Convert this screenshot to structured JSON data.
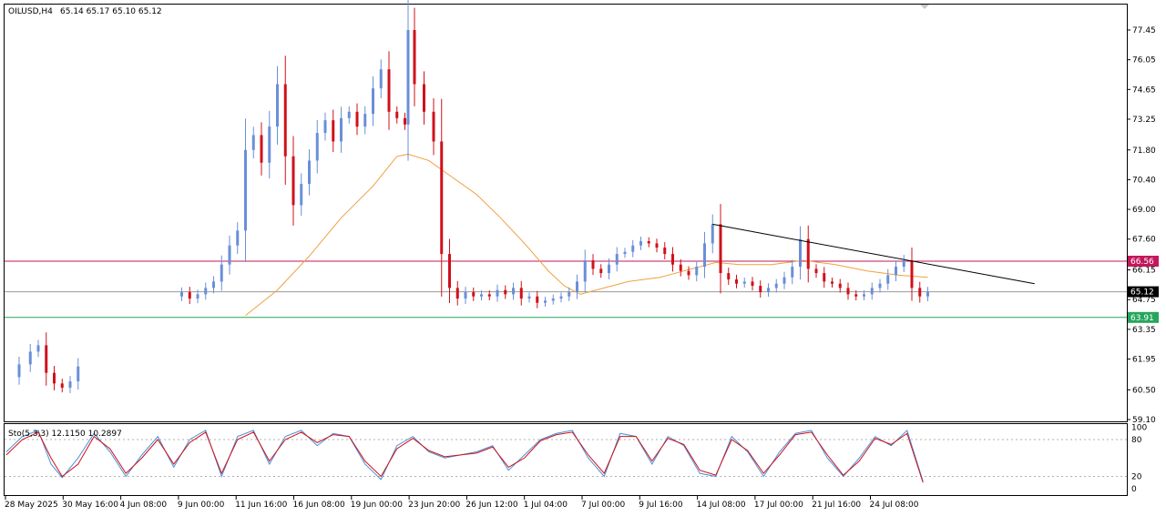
{
  "header": {
    "symbol_timeframe": "OILUSD,H4",
    "ohlc": "65.14 65.17 65.10 65.12"
  },
  "stochastic": {
    "label": "Sto(5,3,3) 12.1150 10.2897",
    "levels": [
      "100",
      "80",
      "20",
      "0"
    ]
  },
  "price_axis": {
    "ticks": [
      "77.45",
      "76.05",
      "74.65",
      "73.25",
      "71.80",
      "70.40",
      "69.00",
      "67.60",
      "66.15",
      "64.75",
      "63.35",
      "61.95",
      "60.50",
      "59.10"
    ],
    "ylim": [
      59.1,
      77.45
    ]
  },
  "time_axis": {
    "ticks": [
      "28 May 2025",
      "30 May 16:00",
      "4 Jun 08:00",
      "9 Jun 00:00",
      "11 Jun 16:00",
      "16 Jun 08:00",
      "19 Jun 00:00",
      "23 Jun 20:00",
      "26 Jun 12:00",
      "1 Jul 04:00",
      "7 Jul 00:00",
      "9 Jul 16:00",
      "14 Jul 08:00",
      "17 Jul 00:00",
      "21 Jul 16:00",
      "24 Jul 08:00"
    ]
  },
  "levels": {
    "resistance": {
      "value": 66.56,
      "label": "66.56",
      "color": "#c2185b"
    },
    "current": {
      "value": 65.12,
      "label": "65.12",
      "color": "#000000"
    },
    "support": {
      "value": 63.91,
      "label": "63.91",
      "color": "#26a65b"
    }
  },
  "colors": {
    "bull": "#6a8fd8",
    "bear": "#d0101a",
    "ma": "#f0a040",
    "stoch_main": "#4a90d9",
    "stoch_signal": "#d0101a",
    "trendline": "#000000",
    "scroll_marker": "#c8c8c8"
  },
  "chart_data": {
    "type": "candlestick",
    "symbol": "OILUSD",
    "timeframe": "H4",
    "ylim": [
      59.1,
      77.45
    ],
    "price_series_closes": [
      [
        0,
        61.1
      ],
      [
        8,
        61.7
      ],
      [
        15,
        62.3
      ],
      [
        20,
        62.6
      ],
      [
        25,
        61.3
      ],
      [
        30,
        60.8
      ],
      [
        35,
        60.6
      ],
      [
        40,
        60.9
      ],
      [
        45,
        61.6
      ],
      [
        105,
        64.9
      ],
      [
        110,
        65.1
      ],
      [
        115,
        64.8
      ],
      [
        120,
        65.0
      ],
      [
        125,
        65.3
      ],
      [
        130,
        65.6
      ],
      [
        135,
        66.4
      ],
      [
        140,
        67.3
      ],
      [
        145,
        68.0
      ],
      [
        150,
        71.8
      ],
      [
        155,
        72.5
      ],
      [
        160,
        71.2
      ],
      [
        165,
        72.9
      ],
      [
        170,
        74.9
      ],
      [
        175,
        71.5
      ],
      [
        180,
        69.2
      ],
      [
        185,
        70.2
      ],
      [
        190,
        71.3
      ],
      [
        195,
        72.6
      ],
      [
        200,
        73.2
      ],
      [
        205,
        72.2
      ],
      [
        210,
        73.3
      ],
      [
        215,
        73.6
      ],
      [
        220,
        72.9
      ],
      [
        225,
        73.5
      ],
      [
        230,
        74.7
      ],
      [
        235,
        75.6
      ],
      [
        240,
        73.6
      ],
      [
        245,
        73.3
      ],
      [
        250,
        73.0
      ],
      [
        252,
        77.45
      ],
      [
        256,
        74.9
      ],
      [
        262,
        73.6
      ],
      [
        268,
        72.2
      ],
      [
        273,
        66.9
      ],
      [
        278,
        65.3
      ],
      [
        283,
        64.8
      ],
      [
        288,
        65.1
      ],
      [
        293,
        64.9
      ],
      [
        298,
        65.0
      ],
      [
        303,
        64.9
      ],
      [
        308,
        65.2
      ],
      [
        313,
        65.0
      ],
      [
        318,
        65.3
      ],
      [
        323,
        64.8
      ],
      [
        328,
        64.9
      ],
      [
        333,
        64.6
      ],
      [
        338,
        64.7
      ],
      [
        343,
        64.8
      ],
      [
        348,
        64.9
      ],
      [
        353,
        65.1
      ],
      [
        358,
        65.6
      ],
      [
        363,
        66.6
      ],
      [
        368,
        66.2
      ],
      [
        373,
        66.0
      ],
      [
        378,
        66.4
      ],
      [
        383,
        66.9
      ],
      [
        388,
        67.0
      ],
      [
        393,
        67.3
      ],
      [
        398,
        67.5
      ],
      [
        403,
        67.4
      ],
      [
        408,
        67.2
      ],
      [
        413,
        66.9
      ],
      [
        418,
        66.4
      ],
      [
        423,
        66.1
      ],
      [
        428,
        65.9
      ],
      [
        433,
        66.3
      ],
      [
        438,
        67.4
      ],
      [
        443,
        68.3
      ],
      [
        448,
        66.0
      ],
      [
        453,
        65.7
      ],
      [
        458,
        65.5
      ],
      [
        463,
        65.6
      ],
      [
        468,
        65.4
      ],
      [
        473,
        65.1
      ],
      [
        478,
        65.3
      ],
      [
        483,
        65.5
      ],
      [
        488,
        65.8
      ],
      [
        493,
        66.3
      ],
      [
        498,
        67.6
      ],
      [
        503,
        66.2
      ],
      [
        508,
        66.0
      ],
      [
        513,
        65.6
      ],
      [
        518,
        65.5
      ],
      [
        523,
        65.3
      ],
      [
        528,
        65.0
      ],
      [
        533,
        64.9
      ],
      [
        538,
        65.0
      ],
      [
        543,
        65.3
      ],
      [
        548,
        65.5
      ],
      [
        553,
        65.9
      ],
      [
        558,
        66.3
      ],
      [
        563,
        66.6
      ],
      [
        568,
        65.3
      ],
      [
        573,
        64.9
      ],
      [
        578,
        65.12
      ]
    ],
    "moving_average": [
      [
        150,
        64.0
      ],
      [
        170,
        65.2
      ],
      [
        190,
        66.8
      ],
      [
        210,
        68.6
      ],
      [
        230,
        70.1
      ],
      [
        245,
        71.5
      ],
      [
        252,
        71.6
      ],
      [
        265,
        71.3
      ],
      [
        280,
        70.5
      ],
      [
        295,
        69.7
      ],
      [
        310,
        68.6
      ],
      [
        325,
        67.4
      ],
      [
        340,
        66.1
      ],
      [
        350,
        65.4
      ],
      [
        360,
        65.0
      ],
      [
        375,
        65.3
      ],
      [
        390,
        65.6
      ],
      [
        410,
        65.8
      ],
      [
        420,
        66.0
      ],
      [
        430,
        66.2
      ],
      [
        445,
        66.5
      ],
      [
        460,
        66.4
      ],
      [
        480,
        66.4
      ],
      [
        500,
        66.6
      ],
      [
        520,
        66.4
      ],
      [
        540,
        66.1
      ],
      [
        560,
        65.9
      ],
      [
        578,
        65.8
      ]
    ],
    "trendline": {
      "from": [
        443,
        68.3
      ],
      "to": [
        645,
        65.5
      ]
    },
    "stochastic_main": [
      [
        0,
        60
      ],
      [
        10,
        85
      ],
      [
        20,
        95
      ],
      [
        28,
        40
      ],
      [
        35,
        18
      ],
      [
        45,
        50
      ],
      [
        55,
        90
      ],
      [
        65,
        60
      ],
      [
        75,
        20
      ],
      [
        85,
        55
      ],
      [
        95,
        85
      ],
      [
        105,
        35
      ],
      [
        115,
        80
      ],
      [
        125,
        95
      ],
      [
        135,
        20
      ],
      [
        145,
        85
      ],
      [
        155,
        95
      ],
      [
        165,
        40
      ],
      [
        175,
        85
      ],
      [
        185,
        95
      ],
      [
        195,
        70
      ],
      [
        205,
        90
      ],
      [
        215,
        85
      ],
      [
        225,
        40
      ],
      [
        235,
        15
      ],
      [
        245,
        70
      ],
      [
        255,
        85
      ],
      [
        265,
        60
      ],
      [
        275,
        50
      ],
      [
        285,
        55
      ],
      [
        295,
        60
      ],
      [
        305,
        70
      ],
      [
        315,
        30
      ],
      [
        325,
        55
      ],
      [
        335,
        80
      ],
      [
        345,
        90
      ],
      [
        355,
        95
      ],
      [
        365,
        50
      ],
      [
        375,
        20
      ],
      [
        385,
        90
      ],
      [
        395,
        85
      ],
      [
        405,
        40
      ],
      [
        415,
        85
      ],
      [
        425,
        70
      ],
      [
        435,
        25
      ],
      [
        445,
        20
      ],
      [
        455,
        85
      ],
      [
        465,
        60
      ],
      [
        475,
        20
      ],
      [
        485,
        60
      ],
      [
        495,
        90
      ],
      [
        505,
        95
      ],
      [
        515,
        50
      ],
      [
        525,
        20
      ],
      [
        535,
        50
      ],
      [
        545,
        85
      ],
      [
        555,
        70
      ],
      [
        565,
        95
      ],
      [
        575,
        12
      ]
    ],
    "stochastic_signal": [
      [
        0,
        55
      ],
      [
        10,
        80
      ],
      [
        20,
        92
      ],
      [
        28,
        50
      ],
      [
        35,
        20
      ],
      [
        45,
        40
      ],
      [
        55,
        85
      ],
      [
        65,
        65
      ],
      [
        75,
        25
      ],
      [
        85,
        50
      ],
      [
        95,
        80
      ],
      [
        105,
        40
      ],
      [
        115,
        75
      ],
      [
        125,
        92
      ],
      [
        135,
        25
      ],
      [
        145,
        80
      ],
      [
        155,
        92
      ],
      [
        165,
        45
      ],
      [
        175,
        80
      ],
      [
        185,
        92
      ],
      [
        195,
        75
      ],
      [
        205,
        88
      ],
      [
        215,
        85
      ],
      [
        225,
        45
      ],
      [
        235,
        20
      ],
      [
        245,
        65
      ],
      [
        255,
        82
      ],
      [
        265,
        62
      ],
      [
        275,
        52
      ],
      [
        285,
        55
      ],
      [
        295,
        58
      ],
      [
        305,
        68
      ],
      [
        315,
        35
      ],
      [
        325,
        50
      ],
      [
        335,
        78
      ],
      [
        345,
        88
      ],
      [
        355,
        92
      ],
      [
        365,
        55
      ],
      [
        375,
        25
      ],
      [
        385,
        85
      ],
      [
        395,
        85
      ],
      [
        405,
        45
      ],
      [
        415,
        82
      ],
      [
        425,
        72
      ],
      [
        435,
        30
      ],
      [
        445,
        22
      ],
      [
        455,
        80
      ],
      [
        465,
        62
      ],
      [
        475,
        25
      ],
      [
        485,
        55
      ],
      [
        495,
        88
      ],
      [
        505,
        92
      ],
      [
        515,
        55
      ],
      [
        525,
        22
      ],
      [
        535,
        45
      ],
      [
        545,
        82
      ],
      [
        555,
        72
      ],
      [
        565,
        90
      ],
      [
        575,
        10
      ]
    ]
  }
}
